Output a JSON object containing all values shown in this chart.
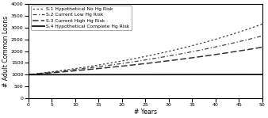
{
  "title": "",
  "xlabel": "# Years",
  "ylabel": "# Adult Common Loons",
  "xlim": [
    0,
    50
  ],
  "ylim": [
    0,
    4000
  ],
  "yticks": [
    0,
    500,
    1000,
    1500,
    2000,
    2500,
    3000,
    3500,
    4000
  ],
  "xticks": [
    0,
    5,
    10,
    15,
    20,
    25,
    30,
    35,
    40,
    45,
    50
  ],
  "series": [
    {
      "label": "S.1 Hypothetical No Hg Risk",
      "linestyle": "dotted",
      "color": "#444444",
      "linewidth": 0.9,
      "growth_rate": 0.023
    },
    {
      "label": "S.2 Current Low Hg Risk",
      "linestyle": "dashdot",
      "color": "#444444",
      "linewidth": 0.9,
      "growth_rate": 0.0195
    },
    {
      "label": "S.3 Current High Hg Risk",
      "linestyle": "dashed",
      "color": "#333333",
      "linewidth": 1.1,
      "growth_rate": 0.0155
    },
    {
      "label": "S.4 Hypothetical Complete Hg Risk",
      "linestyle": "solid",
      "color": "#111111",
      "linewidth": 1.3,
      "growth_rate": 0.00015
    }
  ],
  "initial_population": 1000,
  "background_color": "#ffffff",
  "legend_fontsize": 4.3,
  "axis_fontsize": 5.5,
  "tick_fontsize": 4.5
}
